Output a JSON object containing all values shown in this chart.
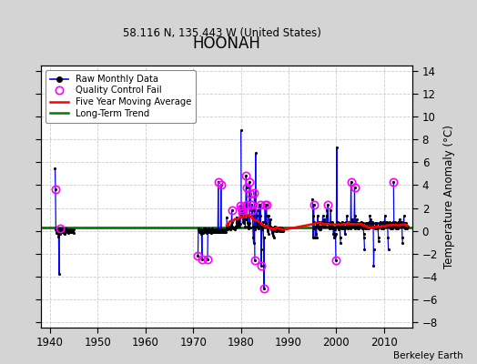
{
  "title": "HOONAH",
  "subtitle": "58.116 N, 135.443 W (United States)",
  "ylabel_right": "Temperature Anomaly (°C)",
  "watermark": "Berkeley Earth",
  "xlim": [
    1938,
    2016
  ],
  "ylim": [
    -8.5,
    14.5
  ],
  "yticks": [
    -8,
    -6,
    -4,
    -2,
    0,
    2,
    4,
    6,
    8,
    10,
    12,
    14
  ],
  "xticks": [
    1940,
    1950,
    1960,
    1970,
    1980,
    1990,
    2000,
    2010
  ],
  "fig_bg": "#d4d4d4",
  "plot_bg": "#ffffff",
  "long_term_y": 0.3,
  "seg1_x": [
    1941.04,
    1941.13,
    1941.21,
    1941.29,
    1941.38,
    1941.46,
    1941.54,
    1941.63,
    1941.71,
    1941.79,
    1941.88,
    1941.96
  ],
  "seg1_y": [
    5.5,
    3.6,
    0.1,
    -0.2,
    0.1,
    0.0,
    0.1,
    -0.1,
    -0.3,
    -0.5,
    -3.8,
    0.2
  ],
  "seg1_qc": [
    false,
    true,
    false,
    false,
    false,
    false,
    false,
    false,
    false,
    false,
    false,
    false
  ],
  "seg2_x": [
    1942.04,
    1942.13,
    1942.21,
    1942.29,
    1942.38,
    1942.46,
    1942.54,
    1942.63,
    1942.71,
    1942.79,
    1942.88,
    1942.96
  ],
  "seg2_y": [
    0.2,
    -0.3,
    0.1,
    0.0,
    -0.1,
    0.1,
    -0.1,
    0.2,
    0.0,
    -0.2,
    0.1,
    -0.3
  ],
  "seg2_qc": [
    true,
    false,
    false,
    false,
    false,
    false,
    false,
    false,
    false,
    false,
    false,
    false
  ],
  "seg3_x": [
    1943.04,
    1943.13,
    1943.21,
    1943.29,
    1943.38,
    1943.46,
    1943.54,
    1943.63,
    1943.71,
    1943.79,
    1943.88,
    1943.96
  ],
  "seg3_y": [
    0.1,
    -0.1,
    0.2,
    -0.1,
    0.0,
    0.1,
    -0.1,
    0.1,
    0.0,
    -0.2,
    0.1,
    -0.1
  ],
  "seg3_qc": [
    false,
    false,
    false,
    false,
    false,
    false,
    false,
    false,
    false,
    false,
    false,
    false
  ],
  "seg4_x": [
    1944.04,
    1944.13,
    1944.21,
    1944.29,
    1944.38,
    1944.46,
    1944.54,
    1944.63,
    1944.71,
    1944.79,
    1944.88,
    1944.96
  ],
  "seg4_y": [
    -0.1,
    0.1,
    0.0,
    0.1,
    -0.1,
    0.0,
    0.1,
    -0.1,
    0.0,
    0.1,
    -0.2,
    0.1
  ],
  "seg4_qc": [
    false,
    false,
    false,
    false,
    false,
    false,
    false,
    false,
    false,
    false,
    false,
    false
  ],
  "mid_years": [
    1971,
    1972,
    1973,
    1974,
    1975,
    1976,
    1977,
    1978,
    1979,
    1980,
    1981,
    1982,
    1983,
    1984,
    1985,
    1986,
    1987,
    1988
  ],
  "mid_vals": [
    [
      -2.2,
      0.2,
      0.1,
      -0.1,
      0.1,
      0.0,
      -0.1,
      0.1,
      0.0,
      -0.3,
      -2.5,
      0.1
    ],
    [
      0.1,
      -0.2,
      0.1,
      0.2,
      -0.1,
      0.2,
      0.2,
      -0.1,
      0.1,
      0.1,
      -0.2,
      -0.1
    ],
    [
      -2.5,
      0.1,
      -0.1,
      0.2,
      -0.1,
      0.1,
      -0.1,
      0.1,
      -0.1,
      0.1,
      -0.2,
      0.2
    ],
    [
      0.1,
      0.1,
      -0.1,
      0.1,
      -0.1,
      0.1,
      -0.1,
      0.1,
      -0.1,
      0.1,
      -0.1,
      0.1
    ],
    [
      0.1,
      -0.1,
      0.1,
      4.3,
      -0.1,
      0.1,
      -0.1,
      0.1,
      -0.1,
      0.1,
      4.0,
      0.1
    ],
    [
      -0.1,
      0.1,
      -0.1,
      0.1,
      -0.1,
      0.1,
      -0.1,
      0.1,
      -0.1,
      0.1,
      -0.1,
      0.1
    ],
    [
      1.2,
      0.3,
      0.2,
      0.1,
      0.3,
      0.4,
      0.2,
      0.3,
      0.4,
      0.1,
      0.3,
      0.3
    ],
    [
      0.5,
      1.8,
      0.8,
      0.4,
      0.3,
      0.2,
      0.3,
      0.2,
      0.2,
      0.1,
      0.4,
      0.4
    ],
    [
      0.3,
      1.2,
      0.8,
      0.6,
      0.4,
      1.0,
      0.6,
      0.8,
      0.6,
      0.4,
      2.2,
      0.6
    ],
    [
      8.8,
      2.0,
      1.4,
      1.8,
      1.6,
      1.0,
      0.8,
      0.7,
      0.8,
      1.9,
      1.4,
      0.4
    ],
    [
      1.0,
      4.8,
      3.8,
      2.3,
      0.7,
      1.3,
      0.4,
      0.2,
      0.5,
      0.7,
      4.3,
      0.3
    ],
    [
      3.2,
      2.3,
      1.8,
      2.3,
      1.3,
      1.8,
      0.4,
      -0.6,
      -1.1,
      0.4,
      3.3,
      -2.6
    ],
    [
      0.1,
      6.8,
      0.4,
      1.3,
      0.8,
      1.8,
      0.4,
      0.7,
      0.4,
      0.2,
      2.3,
      0.8
    ],
    [
      0.4,
      2.3,
      1.3,
      -3.1,
      -1.6,
      0.4,
      0.1,
      0.8,
      0.4,
      -0.6,
      -5.1,
      -0.6
    ],
    [
      0.8,
      2.3,
      0.6,
      0.4,
      2.3,
      1.3,
      0.4,
      0.1,
      0.0,
      -0.3,
      1.3,
      0.4
    ],
    [
      0.4,
      0.7,
      1.0,
      0.4,
      0.2,
      0.1,
      -0.2,
      0.2,
      0.3,
      -0.4,
      0.0,
      -0.6
    ],
    [
      0.1,
      0.4,
      0.2,
      0.0,
      0.1,
      0.3,
      0.1,
      0.0,
      0.2,
      0.1,
      0.3,
      0.2
    ],
    [
      0.2,
      0.1,
      0.0,
      0.3,
      0.1,
      0.0,
      0.2,
      0.1,
      0.0,
      0.2,
      0.1,
      0.0
    ]
  ],
  "mid_qc": [
    [
      true,
      false,
      false,
      false,
      false,
      false,
      false,
      false,
      false,
      false,
      true,
      false
    ],
    [
      false,
      false,
      false,
      false,
      false,
      false,
      false,
      false,
      false,
      false,
      false,
      false
    ],
    [
      true,
      false,
      false,
      false,
      false,
      false,
      false,
      false,
      false,
      false,
      false,
      false
    ],
    [
      false,
      false,
      false,
      false,
      false,
      false,
      false,
      false,
      false,
      false,
      false,
      false
    ],
    [
      false,
      false,
      false,
      true,
      false,
      false,
      false,
      false,
      false,
      false,
      true,
      false
    ],
    [
      false,
      false,
      false,
      false,
      false,
      false,
      false,
      false,
      false,
      false,
      false,
      false
    ],
    [
      false,
      false,
      false,
      false,
      false,
      false,
      false,
      false,
      false,
      false,
      false,
      false
    ],
    [
      false,
      true,
      false,
      false,
      false,
      false,
      false,
      false,
      false,
      false,
      false,
      false
    ],
    [
      false,
      false,
      false,
      false,
      false,
      false,
      false,
      false,
      false,
      false,
      true,
      false
    ],
    [
      false,
      true,
      false,
      true,
      true,
      false,
      false,
      false,
      false,
      false,
      false,
      false
    ],
    [
      false,
      true,
      true,
      true,
      false,
      false,
      false,
      false,
      false,
      false,
      true,
      false
    ],
    [
      true,
      true,
      false,
      true,
      false,
      true,
      false,
      false,
      false,
      false,
      true,
      true
    ],
    [
      false,
      false,
      false,
      false,
      false,
      false,
      false,
      false,
      false,
      false,
      false,
      false
    ],
    [
      false,
      true,
      false,
      true,
      false,
      false,
      false,
      false,
      false,
      false,
      true,
      false
    ],
    [
      false,
      true,
      false,
      false,
      true,
      false,
      false,
      false,
      false,
      false,
      false,
      false
    ],
    [
      false,
      false,
      false,
      false,
      false,
      false,
      false,
      false,
      false,
      false,
      false,
      false
    ],
    [
      false,
      false,
      false,
      false,
      false,
      false,
      false,
      false,
      false,
      false,
      false,
      false
    ],
    [
      false,
      false,
      false,
      false,
      false,
      false,
      false,
      false,
      false,
      false,
      false,
      false
    ]
  ],
  "late_years": [
    1995,
    1996,
    1997,
    1998,
    1999,
    2000,
    2001,
    2002,
    2003,
    2004,
    2005,
    2006,
    2007,
    2008,
    2009,
    2010,
    2011,
    2012,
    2013,
    2014
  ],
  "late_vals": [
    [
      2.8,
      1.3,
      -0.6,
      2.3,
      0.8,
      0.2,
      0.4,
      -0.6,
      -0.3,
      0.4,
      0.7,
      -0.6
    ],
    [
      0.4,
      1.3,
      0.7,
      0.2,
      0.4,
      0.8,
      0.1,
      0.2,
      0.4,
      0.1,
      0.4,
      0.7
    ],
    [
      0.8,
      0.7,
      1.3,
      0.4,
      0.7,
      1.0,
      0.4,
      0.7,
      0.8,
      0.4,
      0.7,
      1.3
    ],
    [
      1.8,
      1.3,
      0.7,
      2.3,
      0.7,
      0.4,
      0.2,
      0.4,
      0.7,
      0.8,
      1.8,
      0.4
    ],
    [
      0.4,
      0.7,
      0.8,
      0.2,
      0.4,
      -0.3,
      0.2,
      -0.6,
      0.1,
      -0.4,
      -0.3,
      -2.6
    ],
    [
      0.4,
      7.3,
      0.7,
      0.8,
      0.4,
      0.1,
      0.4,
      0.2,
      0.7,
      0.4,
      -0.6,
      -1.1
    ],
    [
      0.4,
      0.2,
      0.4,
      0.8,
      0.7,
      0.2,
      0.4,
      0.7,
      0.4,
      0.2,
      -0.3,
      0.4
    ],
    [
      0.7,
      0.8,
      0.4,
      1.3,
      0.7,
      0.2,
      0.4,
      0.7,
      0.8,
      0.4,
      0.7,
      0.2
    ],
    [
      0.4,
      4.3,
      0.7,
      0.4,
      1.0,
      0.7,
      0.4,
      0.8,
      0.4,
      0.7,
      3.8,
      0.2
    ],
    [
      1.3,
      0.7,
      0.4,
      1.0,
      0.7,
      0.2,
      0.4,
      0.7,
      0.4,
      0.2,
      0.4,
      0.7
    ],
    [
      0.4,
      0.7,
      0.4,
      0.8,
      0.4,
      0.2,
      0.4,
      0.7,
      0.4,
      -0.3,
      -0.6,
      -1.6
    ],
    [
      0.4,
      0.2,
      0.4,
      0.7,
      0.4,
      0.2,
      0.4,
      0.7,
      0.4,
      0.2,
      0.4,
      0.8
    ],
    [
      1.3,
      0.8,
      0.4,
      1.0,
      0.7,
      0.4,
      0.7,
      0.8,
      0.4,
      0.7,
      -3.1,
      -1.6
    ],
    [
      0.4,
      0.2,
      0.4,
      0.7,
      0.4,
      0.2,
      0.4,
      0.7,
      0.4,
      0.2,
      -0.6,
      -0.9
    ],
    [
      0.4,
      0.7,
      0.4,
      0.8,
      0.4,
      0.2,
      0.4,
      0.7,
      0.4,
      0.2,
      0.4,
      0.8
    ],
    [
      0.8,
      0.4,
      1.3,
      0.7,
      0.4,
      0.7,
      0.4,
      0.8,
      0.7,
      0.4,
      -0.6,
      -1.6
    ],
    [
      0.4,
      0.7,
      0.4,
      0.8,
      0.4,
      0.2,
      0.4,
      0.7,
      0.4,
      0.2,
      0.4,
      0.8
    ],
    [
      4.3,
      0.4,
      0.7,
      0.4,
      0.8,
      0.4,
      0.2,
      0.4,
      0.7,
      0.4,
      0.2,
      0.4
    ],
    [
      0.8,
      0.4,
      0.7,
      1.0,
      0.4,
      0.7,
      0.4,
      0.8,
      0.4,
      0.7,
      -0.6,
      -1.1
    ],
    [
      0.4,
      0.7,
      1.3,
      0.4,
      0.7,
      0.4,
      0.2,
      0.4,
      0.7,
      0.4,
      0.2,
      0.4
    ]
  ],
  "late_qc": [
    [
      false,
      false,
      false,
      true,
      false,
      false,
      false,
      false,
      false,
      false,
      false,
      false
    ],
    [
      false,
      false,
      false,
      false,
      false,
      false,
      false,
      false,
      false,
      false,
      false,
      false
    ],
    [
      false,
      false,
      false,
      false,
      false,
      false,
      false,
      false,
      false,
      false,
      false,
      false
    ],
    [
      false,
      false,
      false,
      true,
      false,
      false,
      false,
      false,
      false,
      false,
      false,
      false
    ],
    [
      false,
      false,
      false,
      false,
      false,
      false,
      false,
      false,
      false,
      false,
      false,
      true
    ],
    [
      false,
      false,
      false,
      false,
      false,
      false,
      false,
      false,
      false,
      false,
      false,
      false
    ],
    [
      false,
      false,
      false,
      false,
      false,
      false,
      false,
      false,
      false,
      false,
      false,
      false
    ],
    [
      false,
      false,
      false,
      false,
      false,
      false,
      false,
      false,
      false,
      false,
      false,
      false
    ],
    [
      false,
      true,
      false,
      false,
      false,
      false,
      false,
      false,
      false,
      false,
      true,
      false
    ],
    [
      false,
      false,
      false,
      false,
      false,
      false,
      false,
      false,
      false,
      false,
      false,
      false
    ],
    [
      false,
      false,
      false,
      false,
      false,
      false,
      false,
      false,
      false,
      false,
      false,
      false
    ],
    [
      false,
      false,
      false,
      false,
      false,
      false,
      false,
      false,
      false,
      false,
      false,
      false
    ],
    [
      false,
      false,
      false,
      false,
      false,
      false,
      false,
      false,
      false,
      false,
      false,
      false
    ],
    [
      false,
      false,
      false,
      false,
      false,
      false,
      false,
      false,
      false,
      false,
      false,
      false
    ],
    [
      false,
      false,
      false,
      false,
      false,
      false,
      false,
      false,
      false,
      false,
      false,
      false
    ],
    [
      false,
      false,
      false,
      false,
      false,
      false,
      false,
      false,
      false,
      false,
      false,
      false
    ],
    [
      false,
      false,
      false,
      false,
      false,
      false,
      false,
      false,
      false,
      false,
      false,
      false
    ],
    [
      true,
      false,
      false,
      false,
      false,
      false,
      false,
      false,
      false,
      false,
      false,
      false
    ],
    [
      false,
      false,
      false,
      false,
      false,
      false,
      false,
      false,
      false,
      false,
      false,
      false
    ],
    [
      false,
      false,
      false,
      false,
      false,
      false,
      false,
      false,
      false,
      false,
      false,
      false
    ]
  ]
}
